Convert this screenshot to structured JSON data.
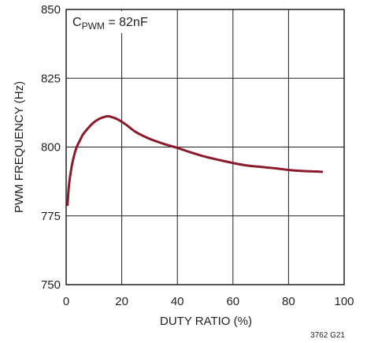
{
  "chart_data": {
    "type": "line",
    "annotation": {
      "prefix": "C",
      "subscript": "PWM",
      "suffix": " = 82nF"
    },
    "xlabel": "DUTY RATIO (%)",
    "ylabel": "PWM FREQUENCY (Hz)",
    "xlim": [
      0,
      100
    ],
    "ylim": [
      750,
      850
    ],
    "xticks": [
      0,
      20,
      40,
      60,
      80,
      100
    ],
    "yticks": [
      750,
      775,
      800,
      825,
      850
    ],
    "xtick_labels": [
      "0",
      "20",
      "40",
      "60",
      "80",
      "100"
    ],
    "ytick_labels": [
      "750",
      "775",
      "800",
      "825",
      "850"
    ],
    "grid": true,
    "figure_id": "3762 G21",
    "series": [
      {
        "color": "#8b1a2b",
        "x": [
          0.5,
          1,
          2,
          3,
          4,
          5,
          6,
          8,
          10,
          12,
          14,
          15,
          16,
          18,
          20,
          22,
          25,
          30,
          35,
          40,
          45,
          50,
          55,
          60,
          65,
          70,
          75,
          80,
          85,
          90,
          92
        ],
        "y": [
          779,
          786,
          793,
          797.5,
          800.5,
          802.5,
          804.5,
          807,
          809,
          810.3,
          811,
          811.2,
          811,
          810.3,
          809.2,
          807.8,
          805.5,
          803,
          801.2,
          799.7,
          798,
          796.5,
          795.3,
          794.2,
          793.3,
          792.8,
          792.3,
          791.7,
          791.3,
          791.1,
          791
        ]
      }
    ]
  }
}
